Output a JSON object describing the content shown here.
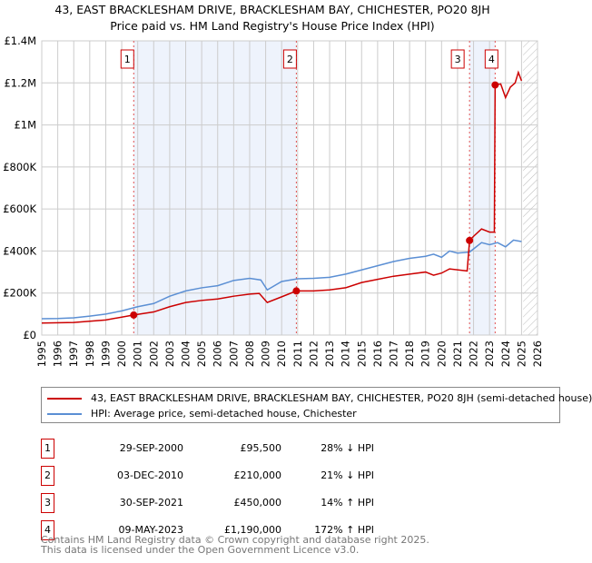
{
  "chart_data": {
    "type": "line",
    "title": "43, EAST BRACKLESHAM DRIVE, BRACKLESHAM BAY, CHICHESTER, PO20 8JH",
    "subtitle": "Price paid vs. HM Land Registry's House Price Index (HPI)",
    "xlim": [
      1995,
      2026
    ],
    "ylim": [
      0,
      1400000
    ],
    "x_ticks": [
      "1995",
      "1996",
      "1997",
      "1998",
      "1999",
      "2000",
      "2001",
      "2002",
      "2003",
      "2004",
      "2005",
      "2006",
      "2007",
      "2008",
      "2009",
      "2010",
      "2011",
      "2012",
      "2013",
      "2014",
      "2015",
      "2016",
      "2017",
      "2018",
      "2019",
      "2020",
      "2021",
      "2022",
      "2023",
      "2024",
      "2025",
      "2026"
    ],
    "y_ticks": [
      {
        "v": 0,
        "label": "£0"
      },
      {
        "v": 200000,
        "label": "£200K"
      },
      {
        "v": 400000,
        "label": "£400K"
      },
      {
        "v": 600000,
        "label": "£600K"
      },
      {
        "v": 800000,
        "label": "£800K"
      },
      {
        "v": 1000000,
        "label": "£1M"
      },
      {
        "v": 1200000,
        "label": "£1.2M"
      },
      {
        "v": 1400000,
        "label": "£1.4M"
      }
    ],
    "shaded": [
      [
        2000.75,
        2010.92
      ],
      [
        2021.75,
        2023.35
      ]
    ],
    "hatched_from": 2025.1,
    "series": [
      {
        "name": "43, EAST BRACKLESHAM DRIVE, BRACKLESHAM BAY, CHICHESTER, PO20 8JH (semi-detached house)",
        "color": "#cc0000",
        "x": [
          1995,
          1997,
          1999,
          2000.75,
          2002,
          2003,
          2004,
          2005,
          2006,
          2007,
          2008,
          2008.6,
          2009.1,
          2010,
          2010.92,
          2012,
          2013,
          2014,
          2015,
          2016,
          2017,
          2018,
          2019,
          2019.5,
          2020,
          2020.5,
          2021.6,
          2021.75,
          2022,
          2022.5,
          2023,
          2023.3,
          2023.35,
          2023.7,
          2024,
          2024.3,
          2024.6,
          2024.8,
          2025
        ],
        "y": [
          57000,
          60000,
          72000,
          95500,
          110000,
          135000,
          155000,
          165000,
          172000,
          185000,
          195000,
          198000,
          155000,
          182000,
          210000,
          210000,
          215000,
          225000,
          250000,
          265000,
          280000,
          290000,
          300000,
          285000,
          295000,
          315000,
          305000,
          450000,
          470000,
          505000,
          490000,
          490000,
          1190000,
          1195000,
          1130000,
          1180000,
          1200000,
          1250000,
          1210000
        ]
      },
      {
        "name": "HPI: Average price, semi-detached house, Chichester",
        "color": "#5b8fd4",
        "x": [
          1995,
          1996,
          1997,
          1998,
          1999,
          2000,
          2001,
          2002,
          2003,
          2004,
          2005,
          2006,
          2007,
          2008,
          2008.7,
          2009.1,
          2010,
          2011,
          2012,
          2013,
          2014,
          2015,
          2016,
          2017,
          2018,
          2019,
          2019.5,
          2020,
          2020.5,
          2021,
          2021.75,
          2022,
          2022.5,
          2023,
          2023.5,
          2024,
          2024.5,
          2025
        ],
        "y": [
          78000,
          79000,
          82000,
          90000,
          100000,
          115000,
          135000,
          150000,
          185000,
          210000,
          225000,
          235000,
          260000,
          270000,
          262000,
          215000,
          255000,
          268000,
          270000,
          275000,
          290000,
          310000,
          330000,
          350000,
          365000,
          375000,
          385000,
          370000,
          400000,
          390000,
          395000,
          410000,
          440000,
          430000,
          440000,
          420000,
          452000,
          445000
        ]
      }
    ],
    "sales": [
      {
        "n": "1",
        "x": 2000.75,
        "y": 95500,
        "date": "29-SEP-2000",
        "price": "£95,500",
        "hpi": "28% ↓ HPI"
      },
      {
        "n": "2",
        "x": 2010.92,
        "y": 210000,
        "date": "03-DEC-2010",
        "price": "£210,000",
        "hpi": "21% ↓ HPI"
      },
      {
        "n": "3",
        "x": 2021.75,
        "y": 450000,
        "date": "30-SEP-2021",
        "price": "£450,000",
        "hpi": "14% ↑ HPI"
      },
      {
        "n": "4",
        "x": 2023.35,
        "y": 1190000,
        "date": "09-MAY-2023",
        "price": "£1,190,000",
        "hpi": "172% ↑ HPI"
      }
    ]
  },
  "legend": {
    "red": "43, EAST BRACKLESHAM DRIVE, BRACKLESHAM BAY, CHICHESTER, PO20 8JH (semi-detached house)",
    "blue": "HPI: Average price, semi-detached house, Chichester"
  },
  "footer": {
    "line1": "Contains HM Land Registry data © Crown copyright and database right 2025.",
    "line2": "This data is licensed under the Open Government Licence v3.0."
  }
}
